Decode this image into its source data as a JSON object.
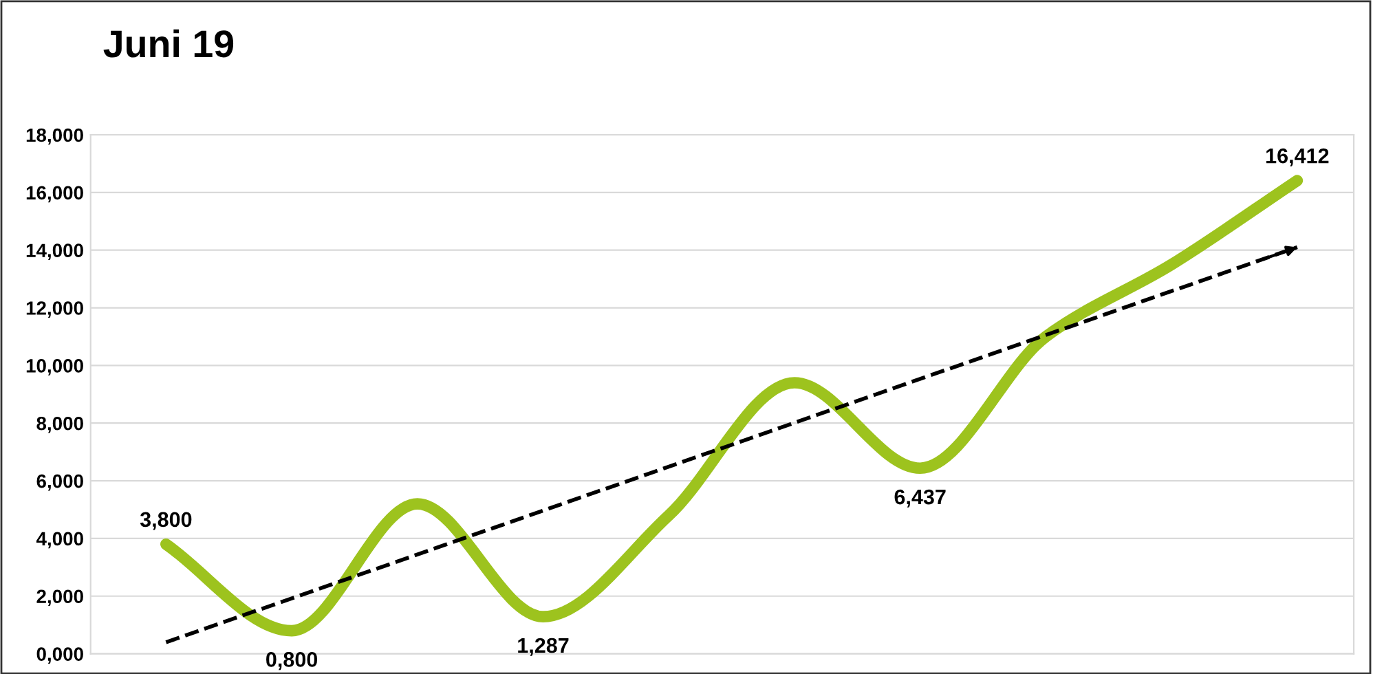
{
  "chart_data": {
    "type": "line",
    "title": "Juni 19",
    "categories": [
      null,
      null,
      null,
      null,
      null,
      null,
      null,
      null,
      null,
      null
    ],
    "series": [
      {
        "color": "#9dc31e",
        "values": [
          3.8,
          0.8,
          5.2,
          1.287,
          4.8,
          9.4,
          6.437,
          11.0,
          13.5,
          16.412
        ],
        "value_labels": [
          "3,800",
          "0,800",
          null,
          "1,287",
          null,
          null,
          "6,437",
          null,
          null,
          "16,412"
        ]
      },
      {
        "type": "line",
        "color": "#000000",
        "values": [
          0.4,
          null,
          null,
          null,
          null,
          null,
          null,
          null,
          null,
          14.1
        ],
        "line_style": "dashed"
      }
    ],
    "ylim": [
      0,
      18
    ],
    "yticks": [
      {
        "value": 0,
        "label": "0,000"
      },
      {
        "value": 2,
        "label": "2,000"
      },
      {
        "value": 4,
        "label": "4,000"
      },
      {
        "value": 6,
        "label": "6,000"
      },
      {
        "value": 8,
        "label": "8,000"
      },
      {
        "value": 10,
        "label": "10,000"
      },
      {
        "value": 12,
        "label": "12,000"
      },
      {
        "value": 14,
        "label": "14,000"
      },
      {
        "value": 16,
        "label": "16,000"
      },
      {
        "value": 18,
        "label": "18,000"
      }
    ],
    "grid": "y",
    "tick_labels": "y",
    "marker": "none",
    "line_style": "solid",
    "legend": false
  }
}
